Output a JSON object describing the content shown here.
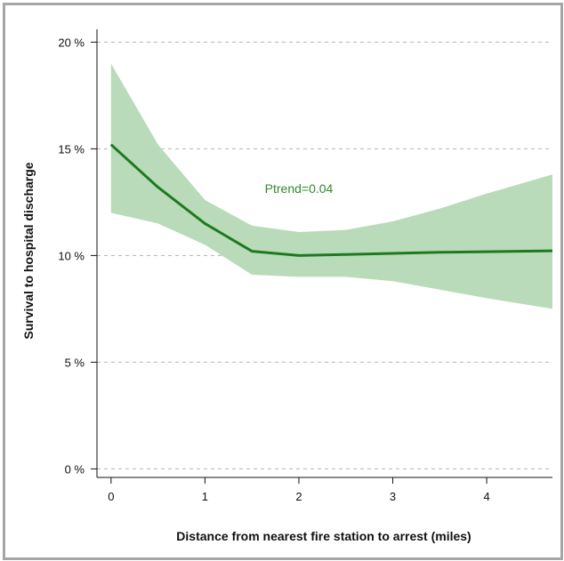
{
  "chart_data": {
    "type": "line",
    "xlabel": "Distance from nearest fire station to arrest (miles)",
    "ylabel": "Survival to hospital discharge",
    "xlim": [
      -0.15,
      4.7
    ],
    "ylim": [
      -0.4,
      20.6
    ],
    "x_ticks": [
      0,
      1,
      2,
      3,
      4
    ],
    "x_tick_labels": [
      "0",
      "1",
      "2",
      "3",
      "4"
    ],
    "y_ticks": [
      0,
      5,
      10,
      15,
      20
    ],
    "y_tick_labels": [
      "0 %",
      "5 %",
      "10 %",
      "15 %",
      "20 %"
    ],
    "grid": "horizontal dashed",
    "annotation": "Ptrend=0.04",
    "colors": {
      "line": "#1f7a1f",
      "band": "#b9dbb9",
      "annotation": "#2e8b2e",
      "grid": "#b5b5b5"
    },
    "series": [
      {
        "values": [
          {
            "x": 0.0,
            "y": 15.2
          },
          {
            "x": 0.5,
            "y": 13.2
          },
          {
            "x": 1.0,
            "y": 11.5
          },
          {
            "x": 1.5,
            "y": 10.2
          },
          {
            "x": 2.0,
            "y": 10.0
          },
          {
            "x": 2.5,
            "y": 10.05
          },
          {
            "x": 3.0,
            "y": 10.1
          },
          {
            "x": 3.5,
            "y": 10.15
          },
          {
            "x": 4.0,
            "y": 10.18
          },
          {
            "x": 4.7,
            "y": 10.22
          }
        ]
      }
    ],
    "confidence_band": {
      "upper": [
        {
          "x": 0.0,
          "y": 19.0
        },
        {
          "x": 0.5,
          "y": 15.2
        },
        {
          "x": 1.0,
          "y": 12.6
        },
        {
          "x": 1.5,
          "y": 11.4
        },
        {
          "x": 2.0,
          "y": 11.1
        },
        {
          "x": 2.5,
          "y": 11.2
        },
        {
          "x": 3.0,
          "y": 11.6
        },
        {
          "x": 3.5,
          "y": 12.2
        },
        {
          "x": 4.0,
          "y": 12.9
        },
        {
          "x": 4.7,
          "y": 13.8
        }
      ],
      "lower": [
        {
          "x": 0.0,
          "y": 12.0
        },
        {
          "x": 0.5,
          "y": 11.5
        },
        {
          "x": 1.0,
          "y": 10.5
        },
        {
          "x": 1.5,
          "y": 9.1
        },
        {
          "x": 2.0,
          "y": 9.0
        },
        {
          "x": 2.5,
          "y": 9.0
        },
        {
          "x": 3.0,
          "y": 8.8
        },
        {
          "x": 3.5,
          "y": 8.4
        },
        {
          "x": 4.0,
          "y": 8.0
        },
        {
          "x": 4.7,
          "y": 7.5
        }
      ]
    }
  }
}
